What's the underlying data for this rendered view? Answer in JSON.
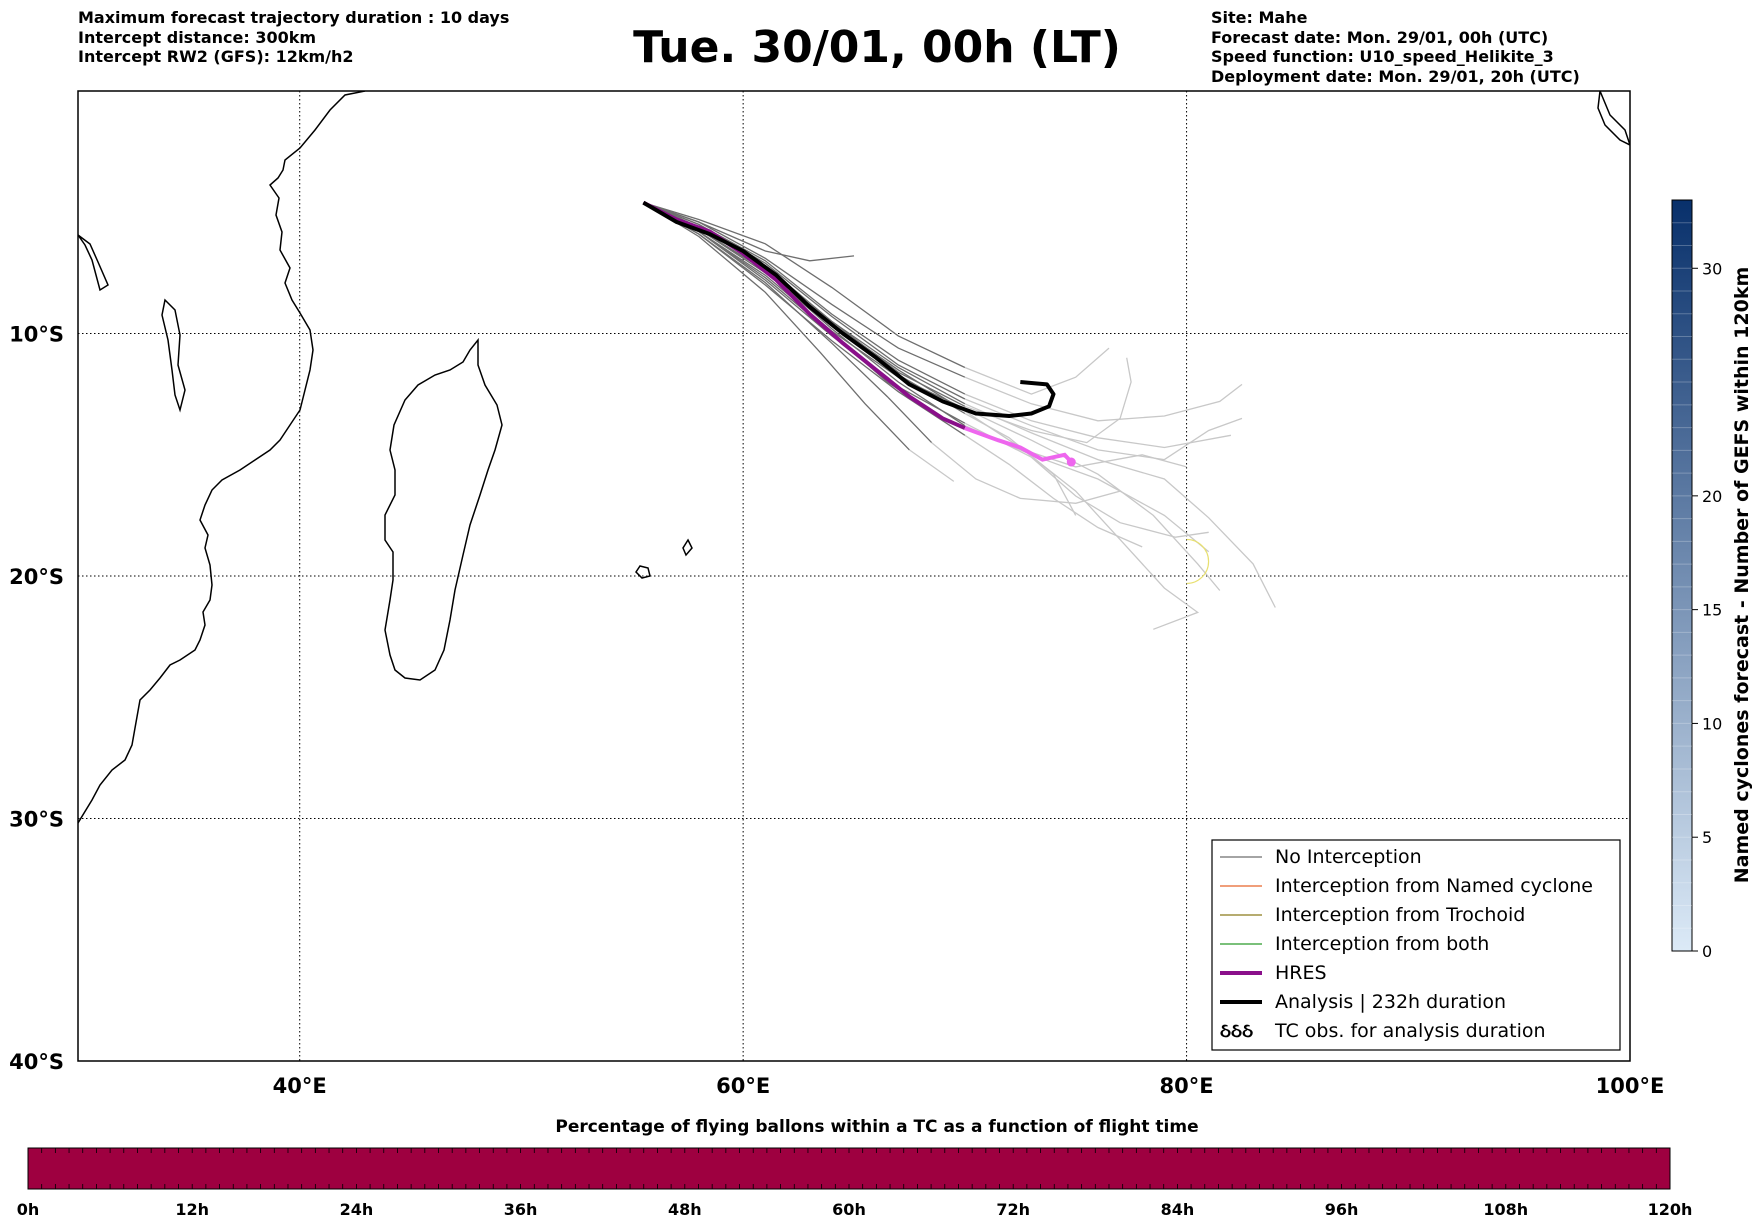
{
  "header_left": [
    "Maximum forecast trajectory duration : 10 days",
    "Intercept distance: 300km",
    "Intercept RW2 (GFS):  12km/h2"
  ],
  "title": "Tue. 30/01, 00h (LT)",
  "header_right": [
    "Site: Mahe",
    "Forecast date: Mon. 29/01, 00h (UTC)",
    "Speed function: U10_speed_Helikite_3",
    "Deployment date: Mon. 29/01, 20h (UTC)"
  ],
  "map": {
    "lon_range": [
      30,
      100
    ],
    "lat_range": [
      -40,
      0
    ],
    "lon_ticks": [
      {
        "value": 40,
        "label": "40°E"
      },
      {
        "value": 60,
        "label": "60°E"
      },
      {
        "value": 80,
        "label": "80°E"
      },
      {
        "value": 100,
        "label": "100°E"
      }
    ],
    "lat_ticks": [
      {
        "value": -10,
        "label": "10°S"
      },
      {
        "value": -20,
        "label": "20°S"
      },
      {
        "value": -30,
        "label": "30°S"
      },
      {
        "value": -40,
        "label": "40°S"
      }
    ],
    "grid": "dotted",
    "colors": {
      "no_interception": "#6e6e6e",
      "no_interception_late": "#c8c8c8",
      "named_cyclone": "#e8642a",
      "trochoid": "#8a7a1a",
      "both": "#2a9a2a",
      "hres": "#8a0f8a",
      "hres_late": "#ee66ee",
      "analysis": "#000000"
    },
    "analysis_track": [
      [
        55.5,
        -4.6
      ],
      [
        57.0,
        -5.4
      ],
      [
        58.5,
        -5.9
      ],
      [
        60.0,
        -6.6
      ],
      [
        61.5,
        -7.6
      ],
      [
        63.0,
        -8.9
      ],
      [
        64.5,
        -10.0
      ],
      [
        66.0,
        -11.0
      ],
      [
        67.5,
        -12.1
      ],
      [
        69.0,
        -12.8
      ],
      [
        70.5,
        -13.3
      ],
      [
        72.0,
        -13.4
      ],
      [
        73.0,
        -13.3
      ],
      [
        73.8,
        -13.0
      ],
      [
        74.0,
        -12.5
      ],
      [
        73.7,
        -12.1
      ],
      [
        72.5,
        -12.0
      ]
    ],
    "hres_track_early": [
      [
        55.5,
        -4.6
      ],
      [
        57.0,
        -5.3
      ],
      [
        58.5,
        -5.8
      ],
      [
        60.0,
        -6.7
      ],
      [
        61.5,
        -7.8
      ],
      [
        63.0,
        -9.2
      ],
      [
        64.5,
        -10.4
      ],
      [
        66.0,
        -11.5
      ],
      [
        67.5,
        -12.6
      ],
      [
        69.0,
        -13.5
      ],
      [
        70.0,
        -13.9
      ]
    ],
    "hres_track_late": [
      [
        70.0,
        -13.9
      ],
      [
        71.5,
        -14.4
      ],
      [
        72.5,
        -14.7
      ],
      [
        73.5,
        -15.2
      ],
      [
        74.0,
        -15.1
      ],
      [
        74.5,
        -15.0
      ],
      [
        74.8,
        -15.3
      ]
    ],
    "ensemble_tracks": [
      [
        [
          55.5,
          -4.6
        ],
        [
          58,
          -5.7
        ],
        [
          61,
          -7.4
        ],
        [
          64,
          -9.8
        ],
        [
          67,
          -12.0
        ],
        [
          70,
          -13.8
        ],
        [
          73,
          -15.0
        ],
        [
          76,
          -16.0
        ],
        [
          79,
          -17.5
        ],
        [
          81,
          -19.0
        ]
      ],
      [
        [
          55.5,
          -4.6
        ],
        [
          58,
          -5.9
        ],
        [
          61,
          -7.9
        ],
        [
          64,
          -10.4
        ],
        [
          66.5,
          -12.6
        ],
        [
          68.5,
          -14.5
        ],
        [
          70.5,
          -16.0
        ],
        [
          72.5,
          -16.8
        ],
        [
          75,
          -17.0
        ],
        [
          77,
          -16.5
        ]
      ],
      [
        [
          55.5,
          -4.6
        ],
        [
          58,
          -5.5
        ],
        [
          61,
          -7.0
        ],
        [
          64,
          -9.2
        ],
        [
          67,
          -11.1
        ],
        [
          70,
          -12.5
        ],
        [
          73,
          -13.6
        ],
        [
          76,
          -14.3
        ],
        [
          79,
          -14.7
        ],
        [
          82,
          -14.2
        ]
      ],
      [
        [
          55.5,
          -4.6
        ],
        [
          58,
          -5.4
        ],
        [
          61,
          -6.9
        ],
        [
          64,
          -8.8
        ],
        [
          67,
          -10.6
        ],
        [
          70,
          -11.8
        ],
        [
          73,
          -12.9
        ],
        [
          76,
          -13.6
        ],
        [
          79,
          -13.4
        ],
        [
          81.5,
          -12.8
        ],
        [
          82.5,
          -12.1
        ]
      ],
      [
        [
          55.5,
          -4.6
        ],
        [
          58,
          -6.0
        ],
        [
          61,
          -8.3
        ],
        [
          63.5,
          -10.8
        ],
        [
          65.5,
          -12.9
        ],
        [
          67.5,
          -14.8
        ],
        [
          69.5,
          -16.1
        ]
      ],
      [
        [
          55.5,
          -4.6
        ],
        [
          58,
          -5.8
        ],
        [
          61,
          -7.6
        ],
        [
          64,
          -9.9
        ],
        [
          67,
          -11.8
        ],
        [
          70,
          -13.1
        ],
        [
          73,
          -14.4
        ],
        [
          76,
          -15.8
        ],
        [
          78.5,
          -17.5
        ],
        [
          80.5,
          -19.5
        ],
        [
          81.5,
          -20.6
        ]
      ],
      [
        [
          55.5,
          -4.6
        ],
        [
          58,
          -5.6
        ],
        [
          61,
          -7.2
        ],
        [
          64,
          -9.5
        ],
        [
          67,
          -11.4
        ],
        [
          70,
          -12.9
        ],
        [
          73,
          -14.1
        ],
        [
          76,
          -15.2
        ],
        [
          79,
          -16.0
        ],
        [
          81,
          -17.6
        ],
        [
          83,
          -19.5
        ],
        [
          84,
          -21.3
        ]
      ],
      [
        [
          55.5,
          -4.6
        ],
        [
          58,
          -5.7
        ],
        [
          61,
          -7.5
        ],
        [
          64,
          -9.6
        ],
        [
          67,
          -11.5
        ],
        [
          70,
          -13.2
        ],
        [
          72.5,
          -14.7
        ],
        [
          75,
          -16.5
        ],
        [
          77,
          -18.5
        ],
        [
          79,
          -20.5
        ],
        [
          80.5,
          -21.5
        ],
        [
          78.5,
          -22.2
        ]
      ],
      [
        [
          55.5,
          -4.6
        ],
        [
          58,
          -5.3
        ],
        [
          61,
          -6.3
        ],
        [
          64,
          -8.1
        ],
        [
          67,
          -10.1
        ],
        [
          70,
          -11.4
        ],
        [
          73,
          -12.5
        ],
        [
          75,
          -11.8
        ],
        [
          76.5,
          -10.6
        ]
      ],
      [
        [
          55.5,
          -4.6
        ],
        [
          58,
          -5.8
        ],
        [
          61,
          -7.7
        ],
        [
          64,
          -10.0
        ],
        [
          66.5,
          -12.0
        ],
        [
          69,
          -13.5
        ],
        [
          72,
          -14.6
        ],
        [
          75,
          -15.5
        ],
        [
          78,
          -15.0
        ],
        [
          80,
          -15.5
        ]
      ],
      [
        [
          55.5,
          -4.6
        ],
        [
          58,
          -5.5
        ],
        [
          61,
          -7.1
        ],
        [
          64,
          -9.3
        ],
        [
          67,
          -11.3
        ],
        [
          70,
          -12.7
        ],
        [
          73,
          -13.8
        ],
        [
          76,
          -14.8
        ],
        [
          79,
          -15.2
        ],
        [
          81,
          -14.0
        ],
        [
          82.5,
          -13.5
        ]
      ],
      [
        [
          55.5,
          -4.6
        ],
        [
          58,
          -5.9
        ],
        [
          61,
          -8.0
        ],
        [
          64,
          -10.3
        ],
        [
          67,
          -12.4
        ],
        [
          70,
          -14.2
        ],
        [
          72,
          -15.4
        ],
        [
          74,
          -16.8
        ],
        [
          76,
          -18.0
        ],
        [
          78,
          -18.8
        ]
      ],
      [
        [
          55.5,
          -4.6
        ],
        [
          58,
          -5.6
        ],
        [
          61,
          -7.3
        ],
        [
          64,
          -9.7
        ],
        [
          67,
          -11.7
        ],
        [
          70,
          -13.3
        ],
        [
          72,
          -14.3
        ],
        [
          74,
          -15.8
        ],
        [
          75,
          -17.5
        ]
      ],
      [
        [
          55.5,
          -4.6
        ],
        [
          58,
          -5.7
        ],
        [
          61,
          -7.4
        ],
        [
          64,
          -9.5
        ],
        [
          67,
          -11.6
        ],
        [
          70,
          -13.0
        ],
        [
          73,
          -14.0
        ],
        [
          75.5,
          -14.5
        ],
        [
          77,
          -13.5
        ],
        [
          77.5,
          -12.0
        ],
        [
          77.3,
          -11.0
        ]
      ],
      [
        [
          55.5,
          -4.6
        ],
        [
          58,
          -5.4
        ],
        [
          61,
          -6.6
        ],
        [
          63,
          -7.0
        ],
        [
          65,
          -6.8
        ]
      ],
      [
        [
          55.5,
          -4.6
        ],
        [
          58,
          -5.8
        ],
        [
          61,
          -7.8
        ],
        [
          64,
          -10.1
        ],
        [
          67,
          -12.2
        ],
        [
          70,
          -13.7
        ],
        [
          73,
          -15.1
        ],
        [
          75,
          -16.7
        ],
        [
          77,
          -17.8
        ],
        [
          79.5,
          -18.4
        ],
        [
          81,
          -18.2
        ]
      ]
    ],
    "dashed_circle": {
      "lon": 80.0,
      "lat": -19.4
    },
    "legend": [
      {
        "label": "No Interception",
        "color": "#6e6e6e",
        "width": 1.2,
        "kind": "line"
      },
      {
        "label": "Interception from Named cyclone",
        "color": "#e8642a",
        "width": 1.2,
        "kind": "line"
      },
      {
        "label": "Interception from Trochoid",
        "color": "#8a7a1a",
        "width": 1.2,
        "kind": "line"
      },
      {
        "label": "Interception from both",
        "color": "#2a9a2a",
        "width": 1.2,
        "kind": "line"
      },
      {
        "label": "HRES",
        "color": "#8a0f8a",
        "width": 4,
        "kind": "line"
      },
      {
        "label": "Analysis | 232h duration",
        "color": "#000000",
        "width": 4,
        "kind": "line"
      },
      {
        "label": "TC obs. for analysis duration",
        "color": "#000000",
        "width": 1,
        "kind": "symbol",
        "symbol": "ઠઠઠ"
      }
    ]
  },
  "colorbar_right": {
    "label": "Named cyclones forecast - Number of GEFS within 120km",
    "range": [
      0,
      33
    ],
    "ticks": [
      0,
      5,
      10,
      15,
      20,
      30
    ],
    "color_low": "#dceaf7",
    "color_high": "#08306b"
  },
  "bottom_bar": {
    "title": "Percentage of flying ballons within a TC as a function of flight time",
    "color": "#9e0040",
    "ticks": [
      "0h",
      "12h",
      "24h",
      "36h",
      "48h",
      "60h",
      "72h",
      "84h",
      "96h",
      "108h",
      "120h"
    ]
  }
}
